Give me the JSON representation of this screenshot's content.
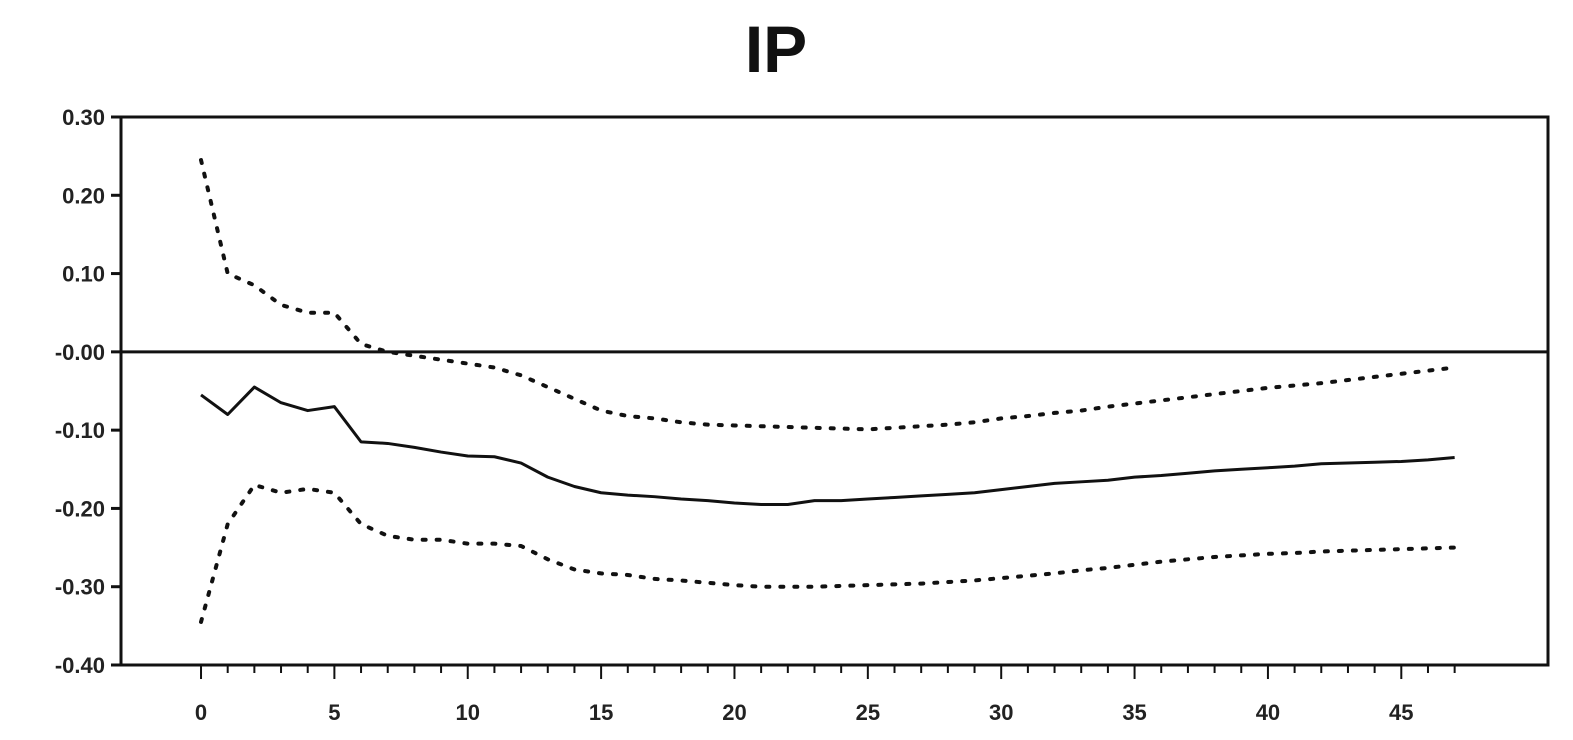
{
  "chart_data": {
    "type": "line",
    "title": "IP",
    "xlabel": "",
    "ylabel": "",
    "xlim": [
      -3,
      50.5
    ],
    "ylim": [
      -0.4,
      0.3
    ],
    "x_ticks": [
      0,
      5,
      10,
      15,
      20,
      25,
      30,
      35,
      40,
      45
    ],
    "x_tick_labels": [
      "0",
      "5",
      "10",
      "15",
      "20",
      "25",
      "30",
      "35",
      "40",
      "45"
    ],
    "y_ticks": [
      0.3,
      0.2,
      0.1,
      0.0,
      -0.1,
      -0.2,
      -0.3,
      -0.4
    ],
    "y_tick_labels": [
      "0.30",
      "0.20",
      "0.10",
      "-0.00",
      "-0.10",
      "-0.20",
      "-0.30",
      "-0.40"
    ],
    "grid": false,
    "zero_line": true,
    "x": [
      0,
      1,
      2,
      3,
      4,
      5,
      6,
      7,
      8,
      9,
      10,
      11,
      12,
      13,
      14,
      15,
      16,
      17,
      18,
      19,
      20,
      21,
      22,
      23,
      24,
      25,
      26,
      27,
      28,
      29,
      30,
      31,
      32,
      33,
      34,
      35,
      36,
      37,
      38,
      39,
      40,
      41,
      42,
      43,
      44,
      45,
      46,
      47
    ],
    "series": [
      {
        "style": "solid",
        "color": "#111111",
        "values": [
          -0.055,
          -0.08,
          -0.045,
          -0.065,
          -0.075,
          -0.07,
          -0.115,
          -0.117,
          -0.122,
          -0.128,
          -0.133,
          -0.134,
          -0.142,
          -0.16,
          -0.172,
          -0.18,
          -0.183,
          -0.185,
          -0.188,
          -0.19,
          -0.193,
          -0.195,
          -0.195,
          -0.19,
          -0.19,
          -0.188,
          -0.186,
          -0.184,
          -0.182,
          -0.18,
          -0.176,
          -0.172,
          -0.168,
          -0.166,
          -0.164,
          -0.16,
          -0.158,
          -0.155,
          -0.152,
          -0.15,
          -0.148,
          -0.146,
          -0.143,
          -0.142,
          -0.141,
          -0.14,
          -0.138,
          -0.135
        ]
      },
      {
        "style": "dotted",
        "color": "#111111",
        "values": [
          0.245,
          0.1,
          0.085,
          0.06,
          0.05,
          0.05,
          0.01,
          0.0,
          -0.005,
          -0.01,
          -0.015,
          -0.02,
          -0.03,
          -0.045,
          -0.06,
          -0.075,
          -0.082,
          -0.085,
          -0.09,
          -0.093,
          -0.094,
          -0.095,
          -0.096,
          -0.097,
          -0.098,
          -0.099,
          -0.097,
          -0.095,
          -0.093,
          -0.09,
          -0.085,
          -0.082,
          -0.078,
          -0.075,
          -0.07,
          -0.066,
          -0.062,
          -0.058,
          -0.054,
          -0.05,
          -0.046,
          -0.043,
          -0.04,
          -0.036,
          -0.032,
          -0.028,
          -0.024,
          -0.02
        ]
      },
      {
        "style": "dotted",
        "color": "#111111",
        "values": [
          -0.345,
          -0.22,
          -0.17,
          -0.18,
          -0.175,
          -0.18,
          -0.22,
          -0.235,
          -0.24,
          -0.24,
          -0.245,
          -0.245,
          -0.248,
          -0.265,
          -0.278,
          -0.283,
          -0.285,
          -0.29,
          -0.292,
          -0.295,
          -0.298,
          -0.3,
          -0.3,
          -0.3,
          -0.299,
          -0.298,
          -0.297,
          -0.296,
          -0.294,
          -0.292,
          -0.289,
          -0.286,
          -0.283,
          -0.279,
          -0.276,
          -0.272,
          -0.268,
          -0.265,
          -0.262,
          -0.26,
          -0.258,
          -0.257,
          -0.255,
          -0.254,
          -0.253,
          -0.252,
          -0.251,
          -0.25
        ]
      }
    ]
  }
}
